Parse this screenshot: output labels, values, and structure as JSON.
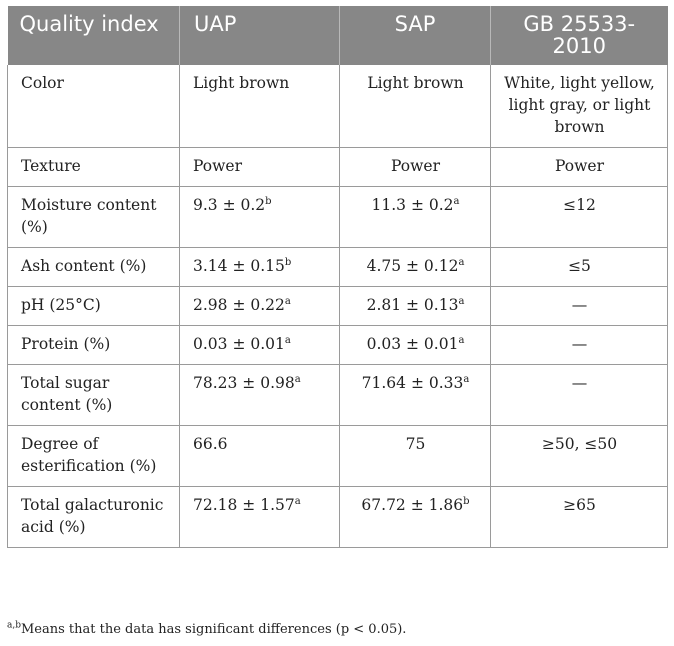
{
  "table": {
    "headers": [
      "Quality index",
      "UAP",
      "SAP",
      "GB 25533-2010"
    ],
    "rows": [
      {
        "c1": "Color",
        "c2": "Light brown",
        "c2sup": "",
        "c3": "Light brown",
        "c3sup": "",
        "c4": "White, light yellow, light gray, or light brown"
      },
      {
        "c1": "Texture",
        "c2": "Power",
        "c2sup": "",
        "c3": "Power",
        "c3sup": "",
        "c4": "Power"
      },
      {
        "c1": "Moisture content (%)",
        "c2": "9.3 ± 0.2",
        "c2sup": "b",
        "c3": "11.3 ± 0.2",
        "c3sup": "a",
        "c4": "≤12"
      },
      {
        "c1": "Ash content (%)",
        "c2": "3.14 ± 0.15",
        "c2sup": "b",
        "c3": "4.75 ± 0.12",
        "c3sup": "a",
        "c4": "≤5"
      },
      {
        "c1": "pH (25°C)",
        "c2": "2.98 ± 0.22",
        "c2sup": "a",
        "c3": "2.81 ± 0.13",
        "c3sup": "a",
        "c4": "—"
      },
      {
        "c1": "Protein (%)",
        "c2": "0.03 ± 0.01",
        "c2sup": "a",
        "c3": "0.03 ± 0.01",
        "c3sup": "a",
        "c4": "—"
      },
      {
        "c1": "Total sugar content (%)",
        "c2": "78.23 ± 0.98",
        "c2sup": "a",
        "c3": "71.64 ± 0.33",
        "c3sup": "a",
        "c4": "—"
      },
      {
        "c1": "Degree of esterification (%)",
        "c2": "66.6",
        "c2sup": "",
        "c3": "75",
        "c3sup": "",
        "c4": "≥50, ≤50"
      },
      {
        "c1": "Total galacturonic acid (%)",
        "c2": "72.18 ± 1.57",
        "c2sup": "a",
        "c3": "67.72 ± 1.86",
        "c3sup": "b",
        "c4": "≥65"
      }
    ]
  },
  "footnote": {
    "marker": "a,b",
    "text": "Means that the data has significant differences (p < 0.05)."
  }
}
